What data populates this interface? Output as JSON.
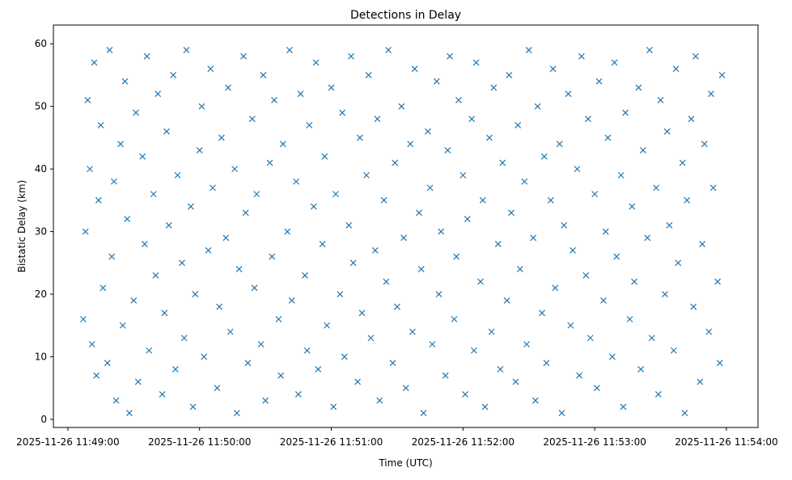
{
  "chart_data": {
    "type": "scatter",
    "title": "Detections in Delay",
    "xlabel": "Time (UTC)",
    "ylabel": "Bistatic Delay (km)",
    "x_units": "seconds after 2025-11-26 11:49:00",
    "xlim": [
      -6.6,
      314.4
    ],
    "ylim": [
      -1.3,
      63.0
    ],
    "grid": false,
    "marker": "x",
    "color": "#1f77b4",
    "x_ticks": [
      {
        "value": 0,
        "label": "2025-11-26 11:49:00"
      },
      {
        "value": 60,
        "label": "2025-11-26 11:50:00"
      },
      {
        "value": 120,
        "label": "2025-11-26 11:51:00"
      },
      {
        "value": 180,
        "label": "2025-11-26 11:52:00"
      },
      {
        "value": 240,
        "label": "2025-11-26 11:53:00"
      },
      {
        "value": 300,
        "label": "2025-11-26 11:54:00"
      }
    ],
    "y_ticks": [
      {
        "value": 0,
        "label": "0"
      },
      {
        "value": 10,
        "label": "10"
      },
      {
        "value": 20,
        "label": "20"
      },
      {
        "value": 30,
        "label": "30"
      },
      {
        "value": 40,
        "label": "40"
      },
      {
        "value": 50,
        "label": "50"
      },
      {
        "value": 60,
        "label": "60"
      }
    ],
    "points_note": "representative sample of the roughly uniform detections, x in seconds, y in km",
    "points": [
      [
        7,
        16
      ],
      [
        8,
        30
      ],
      [
        9,
        51
      ],
      [
        10,
        40
      ],
      [
        11,
        12
      ],
      [
        12,
        57
      ],
      [
        13,
        7
      ],
      [
        14,
        35
      ],
      [
        15,
        47
      ],
      [
        16,
        21
      ],
      [
        18,
        9
      ],
      [
        19,
        59
      ],
      [
        20,
        26
      ],
      [
        21,
        38
      ],
      [
        22,
        3
      ],
      [
        24,
        44
      ],
      [
        25,
        15
      ],
      [
        26,
        54
      ],
      [
        27,
        32
      ],
      [
        28,
        1
      ],
      [
        30,
        19
      ],
      [
        31,
        49
      ],
      [
        32,
        6
      ],
      [
        34,
        42
      ],
      [
        35,
        28
      ],
      [
        36,
        58
      ],
      [
        37,
        11
      ],
      [
        39,
        36
      ],
      [
        40,
        23
      ],
      [
        41,
        52
      ],
      [
        43,
        4
      ],
      [
        44,
        17
      ],
      [
        45,
        46
      ],
      [
        46,
        31
      ],
      [
        48,
        55
      ],
      [
        49,
        8
      ],
      [
        50,
        39
      ],
      [
        52,
        25
      ],
      [
        53,
        13
      ],
      [
        54,
        59
      ],
      [
        56,
        34
      ],
      [
        57,
        2
      ],
      [
        58,
        20
      ],
      [
        60,
        43
      ],
      [
        61,
        50
      ],
      [
        62,
        10
      ],
      [
        64,
        27
      ],
      [
        65,
        56
      ],
      [
        66,
        37
      ],
      [
        68,
        5
      ],
      [
        69,
        18
      ],
      [
        70,
        45
      ],
      [
        72,
        29
      ],
      [
        73,
        53
      ],
      [
        74,
        14
      ],
      [
        76,
        40
      ],
      [
        77,
        1
      ],
      [
        78,
        24
      ],
      [
        80,
        58
      ],
      [
        81,
        33
      ],
      [
        82,
        9
      ],
      [
        84,
        48
      ],
      [
        85,
        21
      ],
      [
        86,
        36
      ],
      [
        88,
        12
      ],
      [
        89,
        55
      ],
      [
        90,
        3
      ],
      [
        92,
        41
      ],
      [
        93,
        26
      ],
      [
        94,
        51
      ],
      [
        96,
        16
      ],
      [
        97,
        7
      ],
      [
        98,
        44
      ],
      [
        100,
        30
      ],
      [
        101,
        59
      ],
      [
        102,
        19
      ],
      [
        104,
        38
      ],
      [
        105,
        4
      ],
      [
        106,
        52
      ],
      [
        108,
        23
      ],
      [
        109,
        11
      ],
      [
        110,
        47
      ],
      [
        112,
        34
      ],
      [
        113,
        57
      ],
      [
        114,
        8
      ],
      [
        116,
        28
      ],
      [
        117,
        42
      ],
      [
        118,
        15
      ],
      [
        120,
        53
      ],
      [
        121,
        2
      ],
      [
        122,
        36
      ],
      [
        124,
        20
      ],
      [
        125,
        49
      ],
      [
        126,
        10
      ],
      [
        128,
        31
      ],
      [
        129,
        58
      ],
      [
        130,
        25
      ],
      [
        132,
        6
      ],
      [
        133,
        45
      ],
      [
        134,
        17
      ],
      [
        136,
        39
      ],
      [
        137,
        55
      ],
      [
        138,
        13
      ],
      [
        140,
        27
      ],
      [
        141,
        48
      ],
      [
        142,
        3
      ],
      [
        144,
        35
      ],
      [
        145,
        22
      ],
      [
        146,
        59
      ],
      [
        148,
        9
      ],
      [
        149,
        41
      ],
      [
        150,
        18
      ],
      [
        152,
        50
      ],
      [
        153,
        29
      ],
      [
        154,
        5
      ],
      [
        156,
        44
      ],
      [
        157,
        14
      ],
      [
        158,
        56
      ],
      [
        160,
        33
      ],
      [
        161,
        24
      ],
      [
        162,
        1
      ],
      [
        164,
        46
      ],
      [
        165,
        37
      ],
      [
        166,
        12
      ],
      [
        168,
        54
      ],
      [
        169,
        20
      ],
      [
        170,
        30
      ],
      [
        172,
        7
      ],
      [
        173,
        43
      ],
      [
        174,
        58
      ],
      [
        176,
        16
      ],
      [
        177,
        26
      ],
      [
        178,
        51
      ],
      [
        180,
        39
      ],
      [
        181,
        4
      ],
      [
        182,
        32
      ],
      [
        184,
        48
      ],
      [
        185,
        11
      ],
      [
        186,
        57
      ],
      [
        188,
        22
      ],
      [
        189,
        35
      ],
      [
        190,
        2
      ],
      [
        192,
        45
      ],
      [
        193,
        14
      ],
      [
        194,
        53
      ],
      [
        196,
        28
      ],
      [
        197,
        8
      ],
      [
        198,
        41
      ],
      [
        200,
        19
      ],
      [
        201,
        55
      ],
      [
        202,
        33
      ],
      [
        204,
        6
      ],
      [
        205,
        47
      ],
      [
        206,
        24
      ],
      [
        208,
        38
      ],
      [
        209,
        12
      ],
      [
        210,
        59
      ],
      [
        212,
        29
      ],
      [
        213,
        3
      ],
      [
        214,
        50
      ],
      [
        216,
        17
      ],
      [
        217,
        42
      ],
      [
        218,
        9
      ],
      [
        220,
        35
      ],
      [
        221,
        56
      ],
      [
        222,
        21
      ],
      [
        224,
        44
      ],
      [
        225,
        1
      ],
      [
        226,
        31
      ],
      [
        228,
        52
      ],
      [
        229,
        15
      ],
      [
        230,
        27
      ],
      [
        232,
        40
      ],
      [
        233,
        7
      ],
      [
        234,
        58
      ],
      [
        236,
        23
      ],
      [
        237,
        48
      ],
      [
        238,
        13
      ],
      [
        240,
        36
      ],
      [
        241,
        5
      ],
      [
        242,
        54
      ],
      [
        244,
        19
      ],
      [
        245,
        30
      ],
      [
        246,
        45
      ],
      [
        248,
        10
      ],
      [
        249,
        57
      ],
      [
        250,
        26
      ],
      [
        252,
        39
      ],
      [
        253,
        2
      ],
      [
        254,
        49
      ],
      [
        256,
        16
      ],
      [
        257,
        34
      ],
      [
        258,
        22
      ],
      [
        260,
        53
      ],
      [
        261,
        8
      ],
      [
        262,
        43
      ],
      [
        264,
        29
      ],
      [
        265,
        59
      ],
      [
        266,
        13
      ],
      [
        268,
        37
      ],
      [
        269,
        4
      ],
      [
        270,
        51
      ],
      [
        272,
        20
      ],
      [
        273,
        46
      ],
      [
        274,
        31
      ],
      [
        276,
        11
      ],
      [
        277,
        56
      ],
      [
        278,
        25
      ],
      [
        280,
        41
      ],
      [
        281,
        1
      ],
      [
        282,
        35
      ],
      [
        284,
        48
      ],
      [
        285,
        18
      ],
      [
        286,
        58
      ],
      [
        288,
        6
      ],
      [
        289,
        28
      ],
      [
        290,
        44
      ],
      [
        292,
        14
      ],
      [
        293,
        52
      ],
      [
        294,
        37
      ],
      [
        296,
        22
      ],
      [
        297,
        9
      ],
      [
        298,
        55
      ]
    ]
  }
}
